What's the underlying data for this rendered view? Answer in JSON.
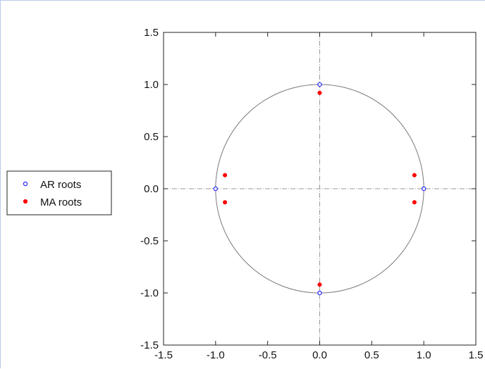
{
  "chart_data": {
    "type": "scatter",
    "title": "",
    "xlabel": "",
    "ylabel": "",
    "xlim": [
      -1.5,
      1.5
    ],
    "ylim": [
      -1.5,
      1.5
    ],
    "x_ticks": [
      "-1.5",
      "-1.0",
      "-0.5",
      "0.0",
      "0.5",
      "1.0",
      "1.5"
    ],
    "y_ticks": [
      "1.5",
      "1.0",
      "0.5",
      "0.0",
      "-0.5",
      "-1.0",
      "-1.5"
    ],
    "grid": false,
    "unit_circle": true,
    "legend_position": "left",
    "series": [
      {
        "name": "AR roots",
        "color": "#2b2bff",
        "marker": "hollow-circle",
        "points": [
          {
            "x": 1.0,
            "y": 0.0
          },
          {
            "x": -1.0,
            "y": 0.0
          },
          {
            "x": 0.0,
            "y": 1.0
          },
          {
            "x": 0.0,
            "y": -1.0
          }
        ]
      },
      {
        "name": "MA roots",
        "color": "#ff0000",
        "marker": "filled-circle",
        "points": [
          {
            "x": 0.0,
            "y": 0.92
          },
          {
            "x": 0.0,
            "y": -0.92
          },
          {
            "x": -0.91,
            "y": 0.13
          },
          {
            "x": -0.91,
            "y": -0.13
          },
          {
            "x": 0.91,
            "y": 0.13
          },
          {
            "x": 0.91,
            "y": -0.13
          }
        ]
      }
    ]
  }
}
